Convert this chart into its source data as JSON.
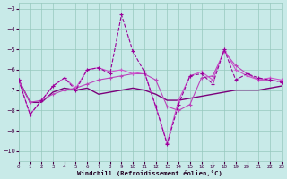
{
  "xlabel": "Windchill (Refroidissement éolien,°C)",
  "xlim": [
    0,
    23
  ],
  "ylim": [
    -10.5,
    -2.7
  ],
  "yticks": [
    -10,
    -9,
    -8,
    -7,
    -6,
    -5,
    -4,
    -3
  ],
  "xticks": [
    0,
    1,
    2,
    3,
    4,
    5,
    6,
    7,
    8,
    9,
    10,
    11,
    12,
    13,
    14,
    15,
    16,
    17,
    18,
    19,
    20,
    21,
    22,
    23
  ],
  "background_color": "#c8eae8",
  "grid_color": "#96c8be",
  "line1_x": [
    0,
    1,
    2,
    3,
    4,
    5,
    6,
    7,
    8,
    9,
    10,
    11,
    12,
    13,
    14,
    15,
    16,
    17,
    18,
    19,
    20,
    21,
    22,
    23
  ],
  "line1_y": [
    -6.5,
    -8.2,
    -7.5,
    -6.8,
    -6.4,
    -7.0,
    -6.0,
    -5.9,
    -6.2,
    -3.3,
    -5.1,
    -6.1,
    -7.8,
    -9.65,
    -7.7,
    -6.3,
    -6.2,
    -6.7,
    -5.0,
    -6.5,
    -6.2,
    -6.4,
    -6.5,
    -6.6
  ],
  "line1_color": "#990099",
  "line1_style": "--",
  "line2_x": [
    0,
    1,
    2,
    3,
    4,
    5,
    6,
    7,
    8,
    9,
    10,
    11,
    12,
    13,
    14,
    15,
    16,
    17,
    18,
    19,
    20,
    21,
    22,
    23
  ],
  "line2_y": [
    -6.5,
    -7.6,
    -7.6,
    -7.1,
    -6.9,
    -7.0,
    -6.9,
    -7.2,
    -7.1,
    -7.0,
    -6.9,
    -7.0,
    -7.2,
    -7.5,
    -7.5,
    -7.4,
    -7.3,
    -7.2,
    -7.1,
    -7.0,
    -7.0,
    -7.0,
    -6.9,
    -6.8
  ],
  "line2_color": "#7b007b",
  "line2_style": "-",
  "line3_x": [
    0,
    1,
    2,
    3,
    4,
    5,
    6,
    7,
    8,
    9,
    10,
    11,
    12,
    13,
    14,
    15,
    16,
    17,
    18,
    19,
    20,
    21,
    22,
    23
  ],
  "line3_y": [
    -6.5,
    -7.6,
    -7.5,
    -7.2,
    -7.0,
    -6.9,
    -6.7,
    -6.5,
    -6.4,
    -6.3,
    -6.2,
    -6.2,
    -6.5,
    -7.8,
    -8.0,
    -7.7,
    -6.4,
    -6.3,
    -5.1,
    -5.8,
    -6.2,
    -6.5,
    -6.5,
    -6.6
  ],
  "line3_color": "#bb44bb",
  "line3_style": "-",
  "line4_x": [
    0,
    1,
    2,
    3,
    4,
    5,
    6,
    7,
    8,
    9,
    10,
    11,
    12,
    13,
    14,
    15,
    16,
    17,
    18,
    19,
    20,
    21,
    22,
    23
  ],
  "line4_y": [
    -6.5,
    -8.2,
    -7.5,
    -6.8,
    -6.4,
    -6.9,
    -6.0,
    -5.9,
    -6.1,
    -6.0,
    -6.2,
    -6.1,
    -7.8,
    -9.6,
    -7.5,
    -6.3,
    -6.1,
    -6.5,
    -5.0,
    -6.0,
    -6.3,
    -6.5,
    -6.4,
    -6.5
  ],
  "line4_color": "#cc55cc",
  "line4_style": "-"
}
